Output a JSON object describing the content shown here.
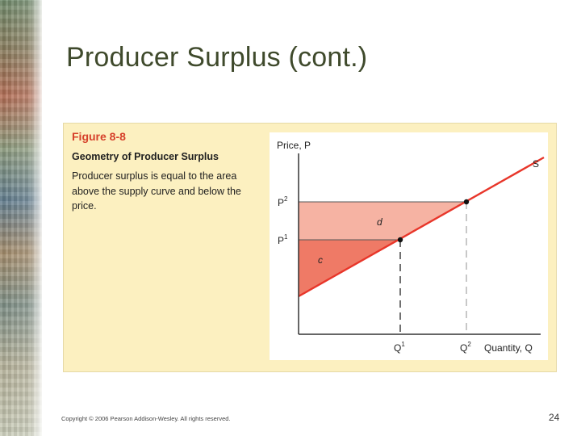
{
  "slide": {
    "title": "Producer Surplus (cont.)",
    "page_number": "24",
    "copyright": "Copyright © 2006 Pearson Addison-Wesley. All rights reserved."
  },
  "figure": {
    "number": "Figure 8-8",
    "heading": "Geometry of Producer Surplus",
    "caption": "Producer surplus is equal to the area above the supply curve and below the price."
  },
  "diagram": {
    "y_axis_label": "Price, P",
    "x_axis_label": "Quantity, Q",
    "curve_label": "S",
    "price_labels": {
      "p1_base": "P",
      "p1_sup": "1",
      "p2_base": "P",
      "p2_sup": "2"
    },
    "quantity_labels": {
      "q1_base": "Q",
      "q1_sup": "1",
      "q2_base": "Q",
      "q2_sup": "2"
    },
    "area_labels": {
      "lower": "c",
      "upper": "d"
    },
    "colors": {
      "supply_line": "#e8362a",
      "area_c": "#ef7a66",
      "area_d": "#f6b3a3",
      "price_line": "#555555",
      "dashed_q1": "#222222",
      "dashed_q2": "#aaaaaa",
      "panel": "#fcf0c0",
      "title": "#3f4a2c",
      "figure_number": "#d6402a"
    }
  }
}
